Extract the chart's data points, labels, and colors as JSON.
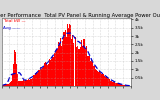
{
  "title": "Solar PV/Inverter Performance  Total PV Panel & Running Average Power Output",
  "bg_color": "#d8d8d8",
  "plot_bg": "#ffffff",
  "bar_color": "#ff0000",
  "avg_color": "#0000cc",
  "grid_color": "#aaaaaa",
  "num_bars": 200,
  "y_max": 4000,
  "y_ticks": [
    500,
    1000,
    1500,
    2000,
    2500,
    3000,
    3500,
    4000
  ],
  "y_tick_labels": [
    "0.5k",
    "1k",
    "1.5k",
    "2k",
    "2.5k",
    "3k",
    "3.5k",
    "4k"
  ],
  "title_fontsize": 3.8,
  "tick_fontsize": 3.0,
  "legend_fontsize": 3.0
}
